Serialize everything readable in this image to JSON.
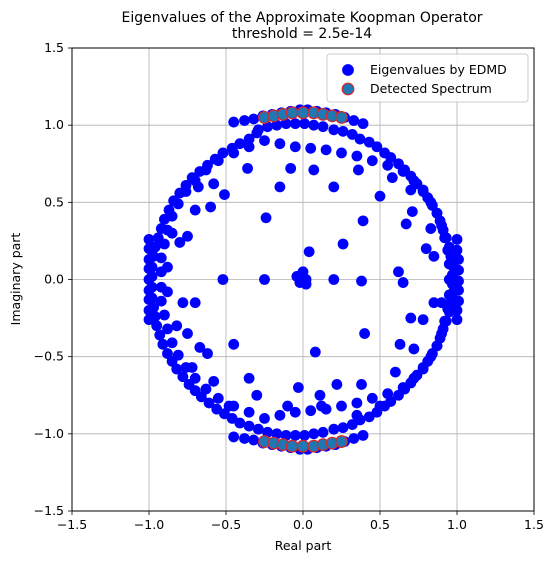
{
  "chart_data": {
    "type": "scatter",
    "title": "Eigenvalues of the Approximate Koopman Operator",
    "subtitle": "threshold = 2.5e-14",
    "xlabel": "Real part",
    "ylabel": "Imaginary part",
    "xlim": [
      -1.5,
      1.5
    ],
    "ylim": [
      -1.5,
      1.5
    ],
    "xticks": [
      -1.5,
      -1.0,
      -0.5,
      0.0,
      0.5,
      1.0,
      1.5
    ],
    "yticks": [
      -1.5,
      -1.0,
      -0.5,
      0.0,
      0.5,
      1.0,
      1.5
    ],
    "xtick_labels": [
      "−1.5",
      "−1.0",
      "−0.5",
      "0.0",
      "0.5",
      "1.0",
      "1.5"
    ],
    "ytick_labels": [
      "−1.5",
      "−1.0",
      "−0.5",
      "0.0",
      "0.5",
      "1.0",
      "1.5"
    ],
    "grid": true,
    "legend_position": "top-right",
    "legend": [
      {
        "label": "Eigenvalues by EDMD",
        "fill": "#0000ff",
        "stroke": "#0000ff"
      },
      {
        "label": "Detected Spectrum",
        "fill": "#1f77b4",
        "stroke": "#d62728"
      }
    ],
    "series": [
      {
        "name": "Eigenvalues by EDMD",
        "color": "#0000ff",
        "points": [
          [
            -0.45,
            1.02
          ],
          [
            -0.38,
            1.03
          ],
          [
            -0.32,
            1.04
          ],
          [
            -0.26,
            1.06
          ],
          [
            -0.2,
            1.07
          ],
          [
            -0.14,
            1.08
          ],
          [
            -0.08,
            1.09
          ],
          [
            -0.02,
            1.1
          ],
          [
            0.03,
            1.1
          ],
          [
            0.09,
            1.09
          ],
          [
            0.15,
            1.08
          ],
          [
            0.21,
            1.07
          ],
          [
            0.27,
            1.05
          ],
          [
            0.33,
            1.03
          ],
          [
            0.39,
            1.01
          ],
          [
            -0.45,
            -1.02
          ],
          [
            -0.38,
            -1.03
          ],
          [
            -0.32,
            -1.04
          ],
          [
            -0.26,
            -1.06
          ],
          [
            -0.2,
            -1.07
          ],
          [
            -0.14,
            -1.08
          ],
          [
            -0.08,
            -1.09
          ],
          [
            -0.02,
            -1.1
          ],
          [
            0.03,
            -1.1
          ],
          [
            0.09,
            -1.09
          ],
          [
            0.15,
            -1.08
          ],
          [
            0.21,
            -1.07
          ],
          [
            0.27,
            -1.05
          ],
          [
            0.33,
            -1.03
          ],
          [
            0.39,
            -1.01
          ],
          [
            -0.29,
            0.97
          ],
          [
            -0.23,
            0.99
          ],
          [
            -0.17,
            1.0
          ],
          [
            -0.11,
            1.01
          ],
          [
            -0.05,
            1.01
          ],
          [
            0.01,
            1.01
          ],
          [
            0.07,
            1.0
          ],
          [
            0.13,
            0.99
          ],
          [
            0.2,
            0.97
          ],
          [
            0.26,
            0.96
          ],
          [
            0.32,
            0.94
          ],
          [
            0.37,
            0.91
          ],
          [
            0.43,
            0.89
          ],
          [
            0.48,
            0.86
          ],
          [
            0.53,
            0.82
          ],
          [
            0.57,
            0.79
          ],
          [
            0.62,
            0.75
          ],
          [
            0.66,
            0.71
          ],
          [
            0.7,
            0.67
          ],
          [
            0.74,
            0.62
          ],
          [
            0.78,
            0.58
          ],
          [
            0.81,
            0.53
          ],
          [
            0.84,
            0.48
          ],
          [
            0.87,
            0.43
          ],
          [
            0.89,
            0.38
          ],
          [
            0.91,
            0.32
          ],
          [
            0.93,
            0.27
          ],
          [
            0.95,
            0.21
          ],
          [
            0.96,
            0.15
          ],
          [
            0.97,
            0.09
          ],
          [
            0.97,
            0.03
          ],
          [
            0.97,
            -0.03
          ],
          [
            0.97,
            -0.09
          ],
          [
            0.96,
            -0.15
          ],
          [
            0.95,
            -0.21
          ],
          [
            0.93,
            -0.27
          ],
          [
            0.91,
            -0.32
          ],
          [
            0.89,
            -0.38
          ],
          [
            0.87,
            -0.43
          ],
          [
            0.84,
            -0.48
          ],
          [
            0.81,
            -0.53
          ],
          [
            0.78,
            -0.58
          ],
          [
            0.74,
            -0.62
          ],
          [
            0.7,
            -0.67
          ],
          [
            0.66,
            -0.71
          ],
          [
            0.62,
            -0.75
          ],
          [
            0.57,
            -0.79
          ],
          [
            0.53,
            -0.82
          ],
          [
            0.48,
            -0.86
          ],
          [
            0.43,
            -0.89
          ],
          [
            0.37,
            -0.91
          ],
          [
            0.32,
            -0.94
          ],
          [
            0.26,
            -0.96
          ],
          [
            0.2,
            -0.97
          ],
          [
            0.13,
            -0.99
          ],
          [
            0.07,
            -1.0
          ],
          [
            0.01,
            -1.01
          ],
          [
            -0.05,
            -1.01
          ],
          [
            -0.11,
            -1.01
          ],
          [
            -0.17,
            -1.0
          ],
          [
            -0.23,
            -0.99
          ],
          [
            -0.29,
            -0.97
          ],
          [
            -0.35,
            -0.95
          ],
          [
            -0.41,
            -0.93
          ],
          [
            -0.46,
            -0.9
          ],
          [
            -0.51,
            -0.87
          ],
          [
            -0.56,
            -0.84
          ],
          [
            -0.61,
            -0.8
          ],
          [
            -0.66,
            -0.76
          ],
          [
            -0.7,
            -0.72
          ],
          [
            -0.74,
            -0.68
          ],
          [
            -0.78,
            -0.63
          ],
          [
            -0.82,
            -0.58
          ],
          [
            -0.85,
            -0.53
          ],
          [
            -0.88,
            -0.48
          ],
          [
            -0.91,
            -0.42
          ],
          [
            -0.93,
            -0.36
          ],
          [
            -0.95,
            -0.3
          ],
          [
            -0.96,
            -0.24
          ],
          [
            -0.97,
            -0.18
          ],
          [
            -0.98,
            -0.12
          ],
          [
            -0.98,
            -0.05
          ],
          [
            -0.98,
            0.02
          ],
          [
            -0.98,
            0.08
          ],
          [
            -0.97,
            0.15
          ],
          [
            -0.96,
            0.21
          ],
          [
            -0.94,
            0.27
          ],
          [
            -0.92,
            0.33
          ],
          [
            -0.9,
            0.39
          ],
          [
            -0.87,
            0.45
          ],
          [
            -0.84,
            0.51
          ],
          [
            -0.8,
            0.56
          ],
          [
            -0.76,
            0.61
          ],
          [
            -0.72,
            0.66
          ],
          [
            -0.67,
            0.7
          ],
          [
            -0.62,
            0.74
          ],
          [
            -0.57,
            0.78
          ],
          [
            -0.52,
            0.82
          ],
          [
            -0.46,
            0.85
          ],
          [
            -0.41,
            0.88
          ],
          [
            -0.35,
            0.91
          ],
          [
            -0.3,
            0.95
          ],
          [
            1.0,
            0.26
          ],
          [
            1.0,
            0.19
          ],
          [
            1.01,
            0.13
          ],
          [
            1.01,
            0.06
          ],
          [
            1.01,
            -0.01
          ],
          [
            1.01,
            -0.07
          ],
          [
            1.01,
            -0.14
          ],
          [
            1.0,
            -0.2
          ],
          [
            1.0,
            -0.26
          ],
          [
            -1.0,
            0.26
          ],
          [
            -1.0,
            0.2
          ],
          [
            -1.0,
            0.13
          ],
          [
            -1.0,
            0.07
          ],
          [
            -1.0,
            0.0
          ],
          [
            -1.0,
            -0.07
          ],
          [
            -1.0,
            -0.13
          ],
          [
            -1.0,
            -0.2
          ],
          [
            -1.0,
            -0.26
          ],
          [
            -0.25,
            0.9
          ],
          [
            -0.15,
            0.88
          ],
          [
            -0.05,
            0.86
          ],
          [
            0.05,
            0.85
          ],
          [
            0.15,
            0.84
          ],
          [
            0.25,
            0.82
          ],
          [
            0.35,
            0.8
          ],
          [
            0.45,
            0.77
          ],
          [
            0.55,
            0.74
          ],
          [
            0.65,
            0.7
          ],
          [
            0.72,
            0.64
          ],
          [
            0.78,
            0.57
          ],
          [
            0.83,
            0.5
          ],
          [
            0.87,
            0.43
          ],
          [
            0.9,
            0.35
          ],
          [
            0.92,
            0.27
          ],
          [
            0.94,
            0.19
          ],
          [
            0.95,
            0.1
          ],
          [
            0.95,
            0.0
          ],
          [
            0.95,
            -0.1
          ],
          [
            0.94,
            -0.19
          ],
          [
            0.92,
            -0.27
          ],
          [
            0.9,
            -0.35
          ],
          [
            0.87,
            -0.43
          ],
          [
            0.83,
            -0.5
          ],
          [
            0.78,
            -0.57
          ],
          [
            0.72,
            -0.64
          ],
          [
            0.65,
            -0.7
          ],
          [
            0.55,
            -0.74
          ],
          [
            0.45,
            -0.77
          ],
          [
            0.35,
            -0.8
          ],
          [
            0.25,
            -0.82
          ],
          [
            0.15,
            -0.84
          ],
          [
            0.05,
            -0.85
          ],
          [
            -0.05,
            -0.86
          ],
          [
            -0.15,
            -0.88
          ],
          [
            -0.25,
            -0.9
          ],
          [
            -0.35,
            -0.86
          ],
          [
            -0.45,
            -0.82
          ],
          [
            -0.55,
            -0.77
          ],
          [
            -0.63,
            -0.71
          ],
          [
            -0.7,
            -0.64
          ],
          [
            -0.76,
            -0.57
          ],
          [
            -0.81,
            -0.49
          ],
          [
            -0.85,
            -0.41
          ],
          [
            -0.88,
            -0.32
          ],
          [
            -0.9,
            -0.23
          ],
          [
            -0.92,
            -0.14
          ],
          [
            -0.92,
            -0.05
          ],
          [
            -0.92,
            0.05
          ],
          [
            -0.92,
            0.14
          ],
          [
            -0.9,
            0.23
          ],
          [
            -0.88,
            0.32
          ],
          [
            -0.85,
            0.41
          ],
          [
            -0.81,
            0.49
          ],
          [
            -0.76,
            0.57
          ],
          [
            -0.7,
            0.64
          ],
          [
            -0.63,
            0.71
          ],
          [
            -0.55,
            0.77
          ],
          [
            -0.45,
            0.82
          ],
          [
            -0.35,
            0.86
          ],
          [
            -0.08,
            0.72
          ],
          [
            0.07,
            0.71
          ],
          [
            -0.36,
            0.72
          ],
          [
            0.36,
            0.71
          ],
          [
            0.58,
            0.66
          ],
          [
            -0.58,
            0.62
          ],
          [
            0.7,
            0.58
          ],
          [
            -0.68,
            0.6
          ],
          [
            0.2,
            0.6
          ],
          [
            -0.51,
            0.55
          ],
          [
            0.5,
            0.54
          ],
          [
            -0.7,
            0.45
          ],
          [
            0.71,
            0.44
          ],
          [
            -0.85,
            0.3
          ],
          [
            -0.75,
            0.28
          ],
          [
            0.67,
            0.36
          ],
          [
            -0.6,
            0.47
          ],
          [
            0.39,
            0.38
          ],
          [
            -0.24,
            0.4
          ],
          [
            -0.15,
            0.6
          ],
          [
            0.83,
            0.33
          ],
          [
            0.26,
            0.23
          ],
          [
            0.04,
            0.18
          ],
          [
            0.62,
            0.05
          ],
          [
            0.65,
            -0.02
          ],
          [
            -0.8,
            0.24
          ],
          [
            0.8,
            0.2
          ],
          [
            0.85,
            0.15
          ],
          [
            -0.88,
            0.08
          ],
          [
            -0.88,
            -0.08
          ],
          [
            -0.7,
            -0.15
          ],
          [
            -0.78,
            -0.15
          ],
          [
            -0.82,
            -0.3
          ],
          [
            -0.75,
            -0.35
          ],
          [
            0.7,
            -0.25
          ],
          [
            0.78,
            -0.26
          ],
          [
            0.85,
            -0.15
          ],
          [
            0.9,
            -0.15
          ],
          [
            0.63,
            -0.42
          ],
          [
            0.72,
            -0.45
          ],
          [
            -0.62,
            -0.48
          ],
          [
            -0.67,
            -0.44
          ],
          [
            -0.45,
            -0.42
          ],
          [
            0.4,
            -0.35
          ],
          [
            0.08,
            -0.47
          ],
          [
            0.6,
            -0.6
          ],
          [
            0.7,
            -0.67
          ],
          [
            -0.58,
            -0.66
          ],
          [
            -0.72,
            -0.57
          ],
          [
            0.38,
            -0.68
          ],
          [
            -0.35,
            -0.64
          ],
          [
            0.22,
            -0.68
          ],
          [
            -0.03,
            -0.7
          ],
          [
            0.11,
            -0.75
          ],
          [
            -0.3,
            -0.75
          ],
          [
            -0.1,
            -0.82
          ],
          [
            0.12,
            -0.82
          ],
          [
            -0.48,
            -0.82
          ],
          [
            0.5,
            -0.82
          ],
          [
            0.35,
            -0.88
          ],
          [
            -0.52,
            0.0
          ],
          [
            -0.25,
            0.0
          ],
          [
            -0.04,
            0.02
          ],
          [
            0.0,
            0.05
          ],
          [
            0.02,
            0.0
          ],
          [
            0.02,
            -0.03
          ],
          [
            -0.02,
            -0.02
          ],
          [
            0.2,
            0.0
          ],
          [
            0.38,
            -0.01
          ]
        ]
      },
      {
        "name": "Detected Spectrum",
        "fill": "#1f77b4",
        "stroke": "#d62728",
        "points": [
          [
            -0.25,
            1.05
          ],
          [
            -0.19,
            1.06
          ],
          [
            -0.13,
            1.07
          ],
          [
            -0.07,
            1.08
          ],
          [
            0.0,
            1.08
          ],
          [
            0.07,
            1.08
          ],
          [
            0.13,
            1.07
          ],
          [
            0.19,
            1.06
          ],
          [
            0.25,
            1.05
          ],
          [
            -0.25,
            -1.05
          ],
          [
            -0.19,
            -1.06
          ],
          [
            -0.13,
            -1.07
          ],
          [
            -0.07,
            -1.08
          ],
          [
            0.0,
            -1.08
          ],
          [
            0.07,
            -1.08
          ],
          [
            0.13,
            -1.07
          ],
          [
            0.19,
            -1.06
          ],
          [
            0.25,
            -1.05
          ]
        ]
      }
    ]
  }
}
